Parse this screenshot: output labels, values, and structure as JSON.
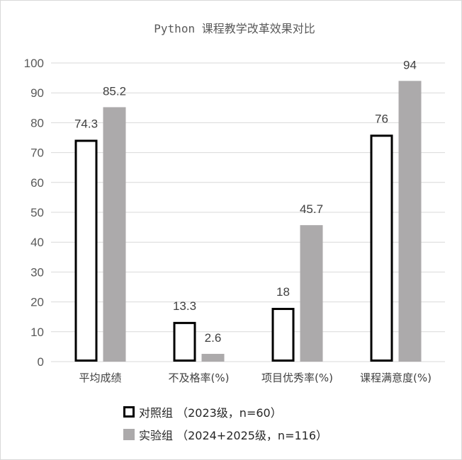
{
  "chart_data": {
    "type": "bar",
    "title": "Python 课程教学改革效果对比",
    "categories": [
      "平均成绩",
      "不及格率(%)",
      "项目优秀率(%)",
      "课程满意度(%)"
    ],
    "series": [
      {
        "name": "对照组 （2023级，n=60）",
        "values": [
          74.3,
          13.3,
          18,
          76
        ],
        "fill": "#ffffff",
        "stroke": "#000000"
      },
      {
        "name": "实验组 （2024+2025级，n=116）",
        "values": [
          85.2,
          2.6,
          45.7,
          94
        ],
        "fill": "#acaaab",
        "stroke": "none"
      }
    ],
    "data_labels": [
      [
        "74.3",
        "13.3",
        "18",
        "76"
      ],
      [
        "85.2",
        "2.6",
        "45.7",
        "94"
      ]
    ],
    "ylim": [
      0,
      100
    ],
    "yticks": [
      0,
      10,
      20,
      30,
      40,
      50,
      60,
      70,
      80,
      90,
      100
    ],
    "xlabel": "",
    "ylabel": "",
    "grid": true,
    "legend_position": "bottom"
  }
}
